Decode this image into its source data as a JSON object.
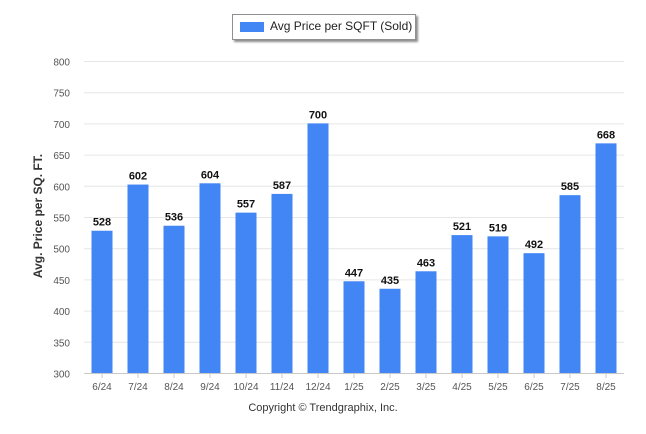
{
  "chart_data": {
    "type": "bar",
    "categories": [
      "6/24",
      "7/24",
      "8/24",
      "9/24",
      "10/24",
      "11/24",
      "12/24",
      "1/25",
      "2/25",
      "3/25",
      "4/25",
      "5/25",
      "6/25",
      "7/25",
      "8/25"
    ],
    "series": [
      {
        "name": "Avg Price per SQFT (Sold)",
        "values": [
          528,
          602,
          536,
          604,
          557,
          587,
          700,
          447,
          435,
          463,
          521,
          519,
          492,
          585,
          668
        ]
      }
    ],
    "ylabel": "Avg. Price per SQ. FT.",
    "xlabel": "",
    "ylim": [
      300,
      800
    ],
    "yticks": [
      300,
      350,
      400,
      450,
      500,
      550,
      600,
      650,
      700,
      750,
      800
    ],
    "grid": true,
    "legend_position": "top-center",
    "bar_color": "#4285f4"
  },
  "footer": {
    "copyright": "Copyright © Trendgraphix, Inc."
  }
}
